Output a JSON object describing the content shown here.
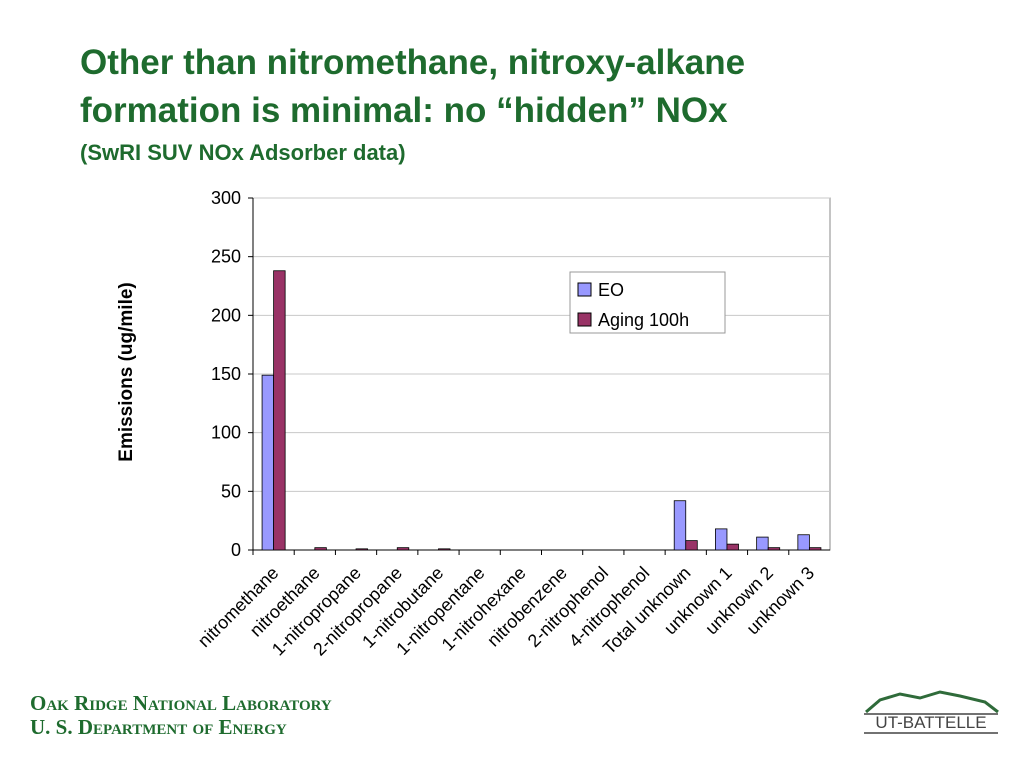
{
  "slide": {
    "title": [
      "Other than nitromethane, nitroxy-alkane",
      "formation is minimal:  no “hidden” NOx"
    ],
    "subtitle": "(SwRI SUV NOx Adsorber data)",
    "footer": [
      "Oak Ridge National Laboratory",
      "U. S. Department of Energy"
    ],
    "logo": "UT-BATTELLE"
  },
  "chart_data": {
    "type": "bar",
    "y_label": "Emissions (ug/mile)",
    "categories": [
      "nitromethane",
      "nitroethane",
      "1-nitropropane",
      "2-nitropropane",
      "1-nitrobutane",
      "1-nitropentane",
      "1-nitrohexane",
      "nitrobenzene",
      "2-nitrophenol",
      "4-nitrophenol",
      "Total unknown",
      "unknown 1",
      "unknown 2",
      "unknown 3"
    ],
    "series": [
      {
        "name": "EO",
        "color": "#9999ff",
        "values": [
          149,
          0,
          0,
          0,
          0,
          0,
          0,
          0,
          0,
          0,
          42,
          18,
          11,
          13
        ]
      },
      {
        "name": "Aging 100h",
        "color": "#993366",
        "values": [
          238,
          2,
          1,
          2,
          1,
          0,
          0,
          0,
          0,
          0,
          8,
          5,
          2,
          2
        ]
      }
    ],
    "ylim": [
      0,
      300
    ],
    "yticks": [
      0,
      50,
      100,
      150,
      200,
      250,
      300
    ],
    "grid": true,
    "legend": "upper-right"
  }
}
